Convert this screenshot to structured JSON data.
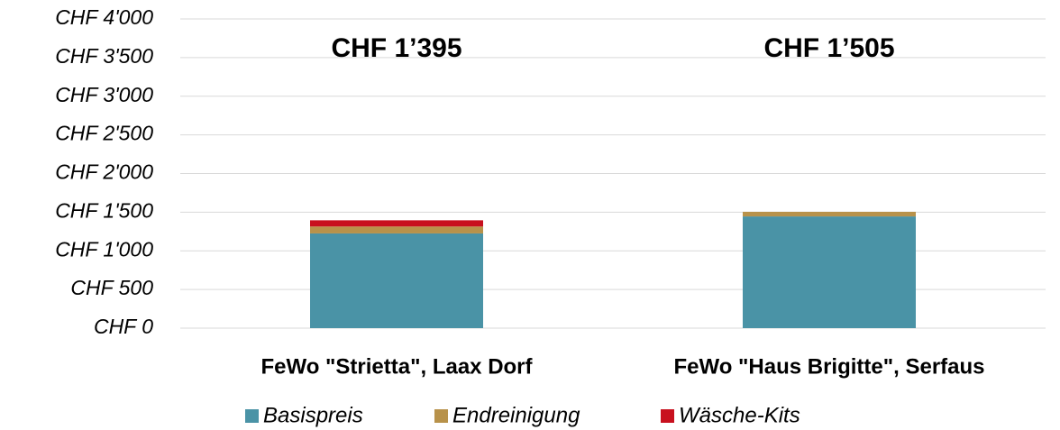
{
  "chart_data": {
    "type": "stacked_bar",
    "categories": [
      "FeWo \"Strietta\", Laax Dorf",
      "FeWo \"Haus Brigitte\", Serfaus"
    ],
    "series": [
      {
        "name": "Basispreis",
        "color": "#4a93a6",
        "values": [
          1225,
          1445
        ]
      },
      {
        "name": "Endreinigung",
        "color": "#b8924a",
        "values": [
          90,
          60
        ]
      },
      {
        "name": "Wäsche-Kits",
        "color": "#c8101e",
        "values": [
          80,
          0
        ]
      }
    ],
    "annotations": [
      "CHF 1’395",
      "CHF 1’505"
    ],
    "ylim": [
      0,
      4000
    ],
    "yticks": [
      {
        "value": 0,
        "label": "CHF 0"
      },
      {
        "value": 500,
        "label": "CHF 500"
      },
      {
        "value": 1000,
        "label": "CHF 1'000"
      },
      {
        "value": 1500,
        "label": "CHF 1'500"
      },
      {
        "value": 2000,
        "label": "CHF 2'000"
      },
      {
        "value": 2500,
        "label": "CHF 2'500"
      },
      {
        "value": 3000,
        "label": "CHF 3'000"
      },
      {
        "value": 3500,
        "label": "CHF 3'500"
      },
      {
        "value": 4000,
        "label": "CHF 4'000"
      }
    ],
    "grid": true
  }
}
